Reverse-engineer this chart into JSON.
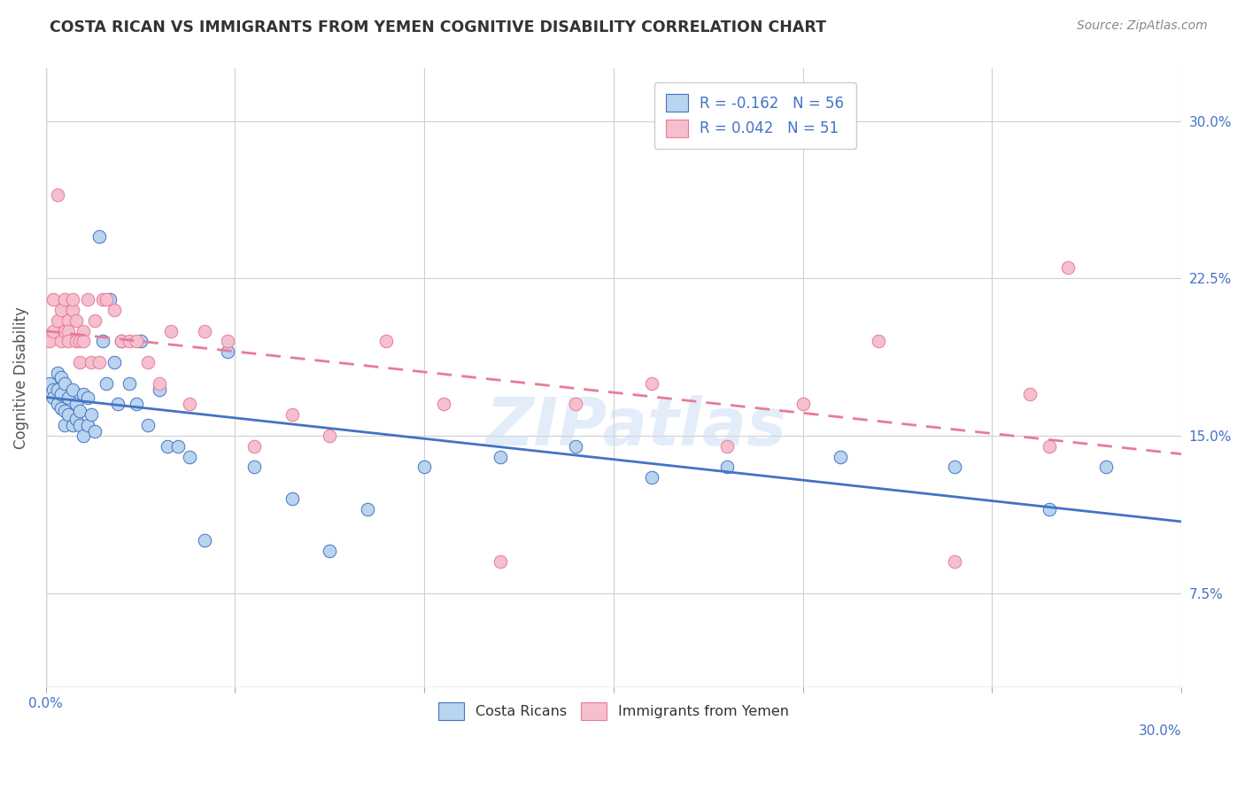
{
  "title": "COSTA RICAN VS IMMIGRANTS FROM YEMEN COGNITIVE DISABILITY CORRELATION CHART",
  "source": "Source: ZipAtlas.com",
  "ylabel": "Cognitive Disability",
  "right_yticks": [
    "30.0%",
    "22.5%",
    "15.0%",
    "7.5%"
  ],
  "right_ytick_vals": [
    0.3,
    0.225,
    0.15,
    0.075
  ],
  "xmin": 0.0,
  "xmax": 0.3,
  "ymin": 0.03,
  "ymax": 0.325,
  "cr_R": "-0.162",
  "cr_N": "56",
  "ym_R": "0.042",
  "ym_N": "51",
  "cr_color": "#b8d4ee",
  "ym_color": "#f5bfcd",
  "cr_line_color": "#4472c4",
  "ym_line_color": "#e87a9a",
  "watermark": "ZIPatlas",
  "costa_ricans_x": [
    0.001,
    0.002,
    0.002,
    0.003,
    0.003,
    0.003,
    0.004,
    0.004,
    0.004,
    0.005,
    0.005,
    0.005,
    0.006,
    0.006,
    0.007,
    0.007,
    0.008,
    0.008,
    0.009,
    0.009,
    0.01,
    0.01,
    0.011,
    0.011,
    0.012,
    0.013,
    0.014,
    0.015,
    0.016,
    0.017,
    0.018,
    0.019,
    0.02,
    0.022,
    0.024,
    0.025,
    0.027,
    0.03,
    0.032,
    0.035,
    0.038,
    0.042,
    0.048,
    0.055,
    0.065,
    0.075,
    0.085,
    0.1,
    0.12,
    0.14,
    0.16,
    0.18,
    0.21,
    0.24,
    0.265,
    0.28
  ],
  "costa_ricans_y": [
    0.175,
    0.172,
    0.168,
    0.18,
    0.165,
    0.172,
    0.17,
    0.163,
    0.178,
    0.162,
    0.155,
    0.175,
    0.168,
    0.16,
    0.155,
    0.172,
    0.165,
    0.158,
    0.155,
    0.162,
    0.17,
    0.15,
    0.155,
    0.168,
    0.16,
    0.152,
    0.245,
    0.195,
    0.175,
    0.215,
    0.185,
    0.165,
    0.195,
    0.175,
    0.165,
    0.195,
    0.155,
    0.172,
    0.145,
    0.145,
    0.14,
    0.1,
    0.19,
    0.135,
    0.12,
    0.095,
    0.115,
    0.135,
    0.14,
    0.145,
    0.13,
    0.135,
    0.14,
    0.135,
    0.115,
    0.135
  ],
  "yemen_x": [
    0.001,
    0.002,
    0.002,
    0.003,
    0.003,
    0.004,
    0.004,
    0.005,
    0.005,
    0.006,
    0.006,
    0.006,
    0.007,
    0.007,
    0.008,
    0.008,
    0.009,
    0.009,
    0.01,
    0.01,
    0.011,
    0.012,
    0.013,
    0.014,
    0.015,
    0.016,
    0.018,
    0.02,
    0.022,
    0.024,
    0.027,
    0.03,
    0.033,
    0.038,
    0.042,
    0.048,
    0.055,
    0.065,
    0.075,
    0.09,
    0.105,
    0.12,
    0.14,
    0.16,
    0.18,
    0.2,
    0.22,
    0.24,
    0.26,
    0.265,
    0.27
  ],
  "yemen_y": [
    0.195,
    0.2,
    0.215,
    0.205,
    0.265,
    0.21,
    0.195,
    0.2,
    0.215,
    0.205,
    0.2,
    0.195,
    0.21,
    0.215,
    0.195,
    0.205,
    0.185,
    0.195,
    0.2,
    0.195,
    0.215,
    0.185,
    0.205,
    0.185,
    0.215,
    0.215,
    0.21,
    0.195,
    0.195,
    0.195,
    0.185,
    0.175,
    0.2,
    0.165,
    0.2,
    0.195,
    0.145,
    0.16,
    0.15,
    0.195,
    0.165,
    0.09,
    0.165,
    0.175,
    0.145,
    0.165,
    0.195,
    0.09,
    0.17,
    0.145,
    0.23
  ]
}
